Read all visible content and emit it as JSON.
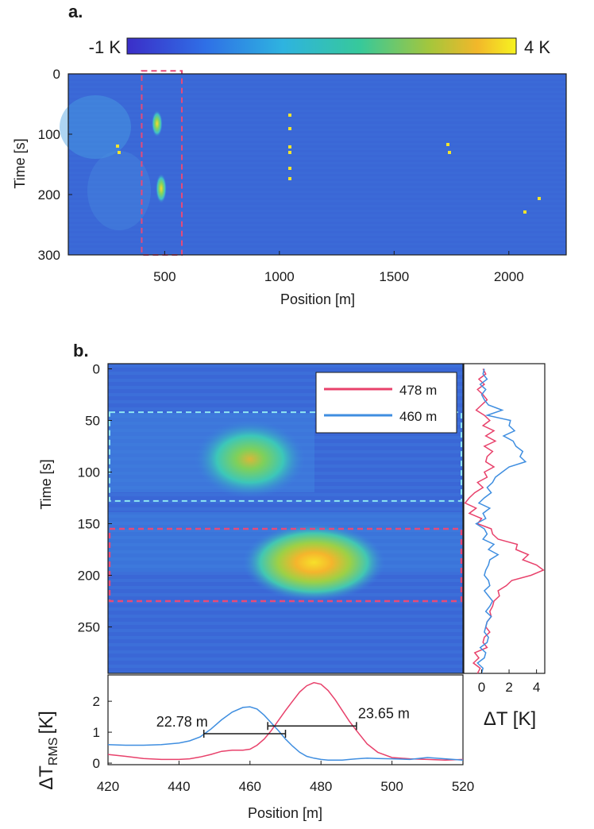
{
  "colors": {
    "bg": "#3a67d6",
    "red": "#e8416b",
    "blue": "#3f8ee0",
    "cyan_dash": "#8fe7f2",
    "red_dash": "#e84a78"
  },
  "panel_a": {
    "label": "a.",
    "colorbar": {
      "min_label": "-1 K",
      "max_label": "4 K",
      "range": [
        -1,
        4
      ]
    }
  },
  "panel_b": {
    "label": "b."
  },
  "chart_data": [
    {
      "type": "heatmap",
      "title": "",
      "xlabel": "Position [m]",
      "ylabel": "Time [s]",
      "xlim": [
        80,
        2250
      ],
      "ylim": [
        300,
        0
      ],
      "x_ticks": [
        500,
        1000,
        1500,
        2000
      ],
      "y_ticks": [
        0,
        100,
        200,
        300
      ],
      "colorbar_range_K": [
        -1,
        4
      ],
      "hotspots": [
        {
          "position_m": 460,
          "time_s": [
            60,
            105
          ],
          "peak_K": 2.5
        },
        {
          "position_m": 478,
          "time_s": [
            165,
            215
          ],
          "peak_K": 3.5
        }
      ],
      "highlight_box": {
        "position_m": [
          400,
          575
        ],
        "time_s": [
          -5,
          300
        ]
      }
    },
    {
      "type": "heatmap",
      "title": "",
      "xlabel": "",
      "ylabel": "Time [s]",
      "xlim": [
        420,
        520
      ],
      "ylim": [
        295,
        -5
      ],
      "y_ticks": [
        0,
        50,
        100,
        150,
        200,
        250
      ],
      "hotspots": [
        {
          "position_m": 460,
          "time_s": [
            65,
            110
          ],
          "peak_K": 2.5
        },
        {
          "position_m": 478,
          "time_s": [
            165,
            210
          ],
          "peak_K": 4.0
        }
      ],
      "dashed_boxes": [
        {
          "color": "cyan",
          "time_s": [
            42,
            128
          ]
        },
        {
          "color": "red",
          "time_s": [
            155,
            225
          ]
        }
      ],
      "legend": [
        "478 m",
        "460 m"
      ],
      "legend_position": "top-right"
    },
    {
      "type": "line",
      "title": "",
      "xlabel": "ΔT [K]",
      "ylabel": "",
      "orientation": "vertical-time",
      "xlim": [
        -1.3,
        4.6
      ],
      "x_ticks": [
        0,
        2,
        4
      ],
      "ylim": [
        295,
        -5
      ],
      "time_s": [
        0,
        5,
        10,
        15,
        20,
        25,
        30,
        35,
        40,
        45,
        50,
        55,
        60,
        65,
        70,
        75,
        80,
        85,
        90,
        95,
        100,
        105,
        110,
        115,
        120,
        125,
        130,
        135,
        140,
        145,
        150,
        155,
        160,
        165,
        170,
        175,
        180,
        185,
        190,
        195,
        200,
        205,
        210,
        215,
        220,
        225,
        230,
        235,
        240,
        245,
        250,
        255,
        260,
        265,
        270,
        275,
        280,
        285,
        290,
        295
      ],
      "series": [
        {
          "name": "478 m",
          "values": [
            0.1,
            0.3,
            -0.2,
            0.2,
            -0.3,
            0.1,
            0.4,
            0.0,
            -0.4,
            0.2,
            0.6,
            0.1,
            0.9,
            0.3,
            1.0,
            0.2,
            0.8,
            0.4,
            0.3,
            0.9,
            0.2,
            0.4,
            -0.3,
            0.1,
            -0.5,
            -0.9,
            -1.2,
            -0.4,
            -0.9,
            0.0,
            -0.3,
            0.7,
            0.8,
            1.2,
            2.6,
            2.5,
            3.4,
            3.0,
            4.0,
            4.5,
            3.6,
            2.2,
            1.8,
            1.2,
            1.3,
            0.9,
            0.8,
            0.6,
            0.7,
            0.4,
            0.3,
            0.6,
            0.2,
            0.1,
            0.4,
            -0.5,
            -0.2,
            -0.6,
            -0.1,
            -0.3
          ]
        },
        {
          "name": "460 m",
          "values": [
            0.2,
            0.1,
            0.4,
            -0.1,
            0.3,
            0.0,
            0.2,
            0.5,
            1.5,
            0.4,
            2.1,
            2.0,
            2.4,
            1.6,
            2.3,
            2.5,
            3.0,
            2.8,
            3.2,
            2.0,
            1.5,
            1.0,
            0.8,
            0.4,
            0.7,
            0.2,
            -0.2,
            0.6,
            0.1,
            0.3,
            -0.4,
            0.2,
            0.4,
            0.1,
            0.9,
            0.5,
            1.2,
            0.6,
            0.5,
            0.3,
            0.2,
            0.5,
            0.6,
            0.2,
            0.5,
            0.8,
            0.6,
            0.3,
            0.7,
            0.4,
            0.3,
            0.2,
            0.5,
            0.4,
            -0.1,
            0.3,
            0.2,
            -0.3,
            0.1,
            0.0
          ]
        }
      ]
    },
    {
      "type": "line",
      "title": "",
      "xlabel": "Position [m]",
      "ylabel": "ΔT_RMS [K]",
      "ylabel_main": "ΔT",
      "ylabel_sub": "RMS",
      "ylabel_unit": "[K]",
      "xlim": [
        420,
        520
      ],
      "ylim": [
        -0.05,
        2.85
      ],
      "x_ticks": [
        420,
        440,
        460,
        480,
        500,
        520
      ],
      "y_ticks": [
        0,
        1,
        2
      ],
      "x": [
        420,
        425,
        430,
        435,
        440,
        443,
        446,
        449,
        452,
        455,
        458,
        460,
        462,
        464,
        466,
        468,
        470,
        472,
        474,
        476,
        478,
        480,
        482,
        484,
        486,
        488,
        490,
        493,
        496,
        500,
        505,
        510,
        515,
        520
      ],
      "series": [
        {
          "name": "478 m",
          "values": [
            0.28,
            0.22,
            0.15,
            0.12,
            0.12,
            0.14,
            0.2,
            0.28,
            0.38,
            0.42,
            0.42,
            0.45,
            0.58,
            0.78,
            1.05,
            1.38,
            1.7,
            2.0,
            2.3,
            2.5,
            2.6,
            2.55,
            2.35,
            2.05,
            1.7,
            1.35,
            1.05,
            0.62,
            0.35,
            0.18,
            0.14,
            0.12,
            0.1,
            0.12
          ]
        },
        {
          "name": "460 m",
          "values": [
            0.6,
            0.58,
            0.58,
            0.6,
            0.65,
            0.72,
            0.85,
            1.1,
            1.4,
            1.65,
            1.8,
            1.82,
            1.75,
            1.55,
            1.3,
            1.05,
            0.78,
            0.55,
            0.35,
            0.22,
            0.16,
            0.12,
            0.1,
            0.1,
            0.1,
            0.12,
            0.14,
            0.16,
            0.15,
            0.14,
            0.12,
            0.18,
            0.14,
            0.1
          ]
        }
      ],
      "annotations": [
        {
          "text": "22.78 m",
          "x_range": [
            447,
            470
          ],
          "y": 0.95
        },
        {
          "text": "23.65 m",
          "x_range": [
            465,
            490
          ],
          "y": 1.2
        }
      ]
    }
  ]
}
